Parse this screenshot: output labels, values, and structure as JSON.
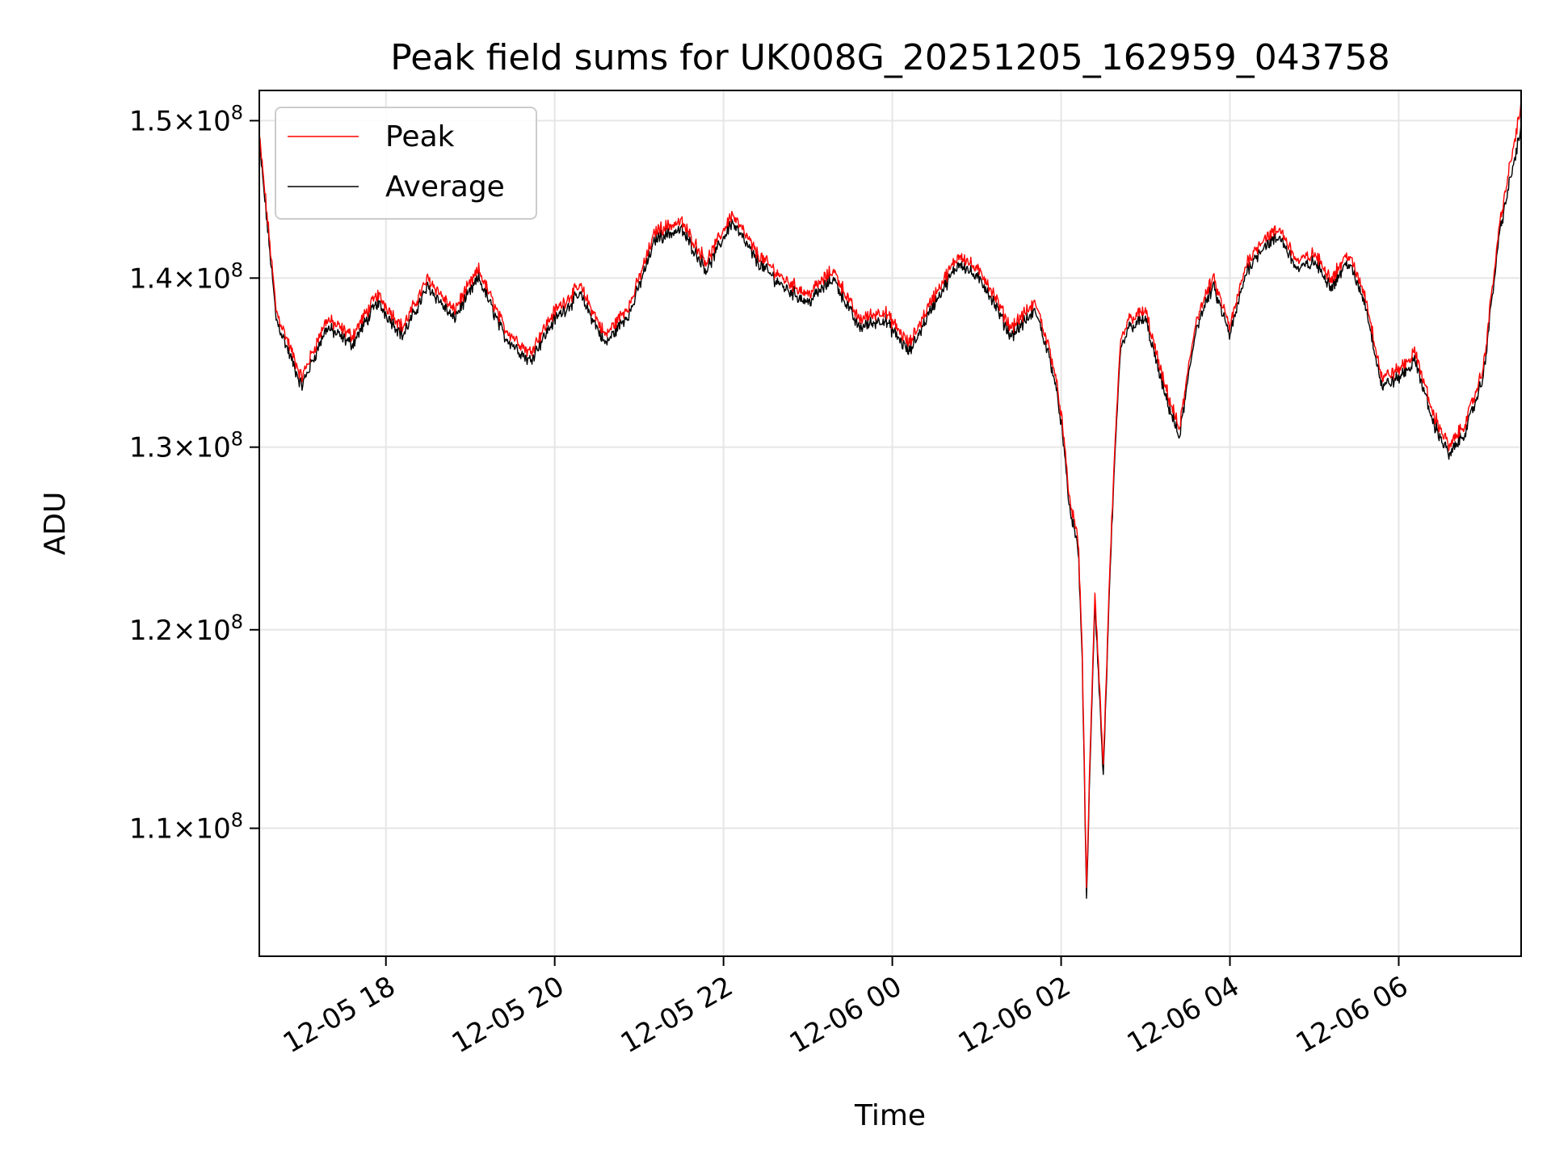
{
  "chart_data": {
    "type": "line",
    "title": "Peak field sums for UK008G_20251205_162959_043758",
    "xlabel": "Time",
    "ylabel": "ADU",
    "y_scale": "log",
    "ylim": [
      104000000,
      152000000
    ],
    "xlim_hours": [
      16.5,
      7.45
    ],
    "x_ticks": [
      {
        "label": "12-05 18",
        "hour": 18
      },
      {
        "label": "12-05 20",
        "hour": 20
      },
      {
        "label": "12-05 22",
        "hour": 22
      },
      {
        "label": "12-06 00",
        "hour": 24
      },
      {
        "label": "12-06 02",
        "hour": 26
      },
      {
        "label": "12-06 04",
        "hour": 28
      },
      {
        "label": "12-06 06",
        "hour": 30
      }
    ],
    "y_ticks": [
      {
        "mantissa": "1.1",
        "exp": "8",
        "value": 110000000
      },
      {
        "mantissa": "1.2",
        "exp": "8",
        "value": 120000000
      },
      {
        "mantissa": "1.3",
        "exp": "8",
        "value": 130000000
      },
      {
        "mantissa": "1.4",
        "exp": "8",
        "value": 140000000
      },
      {
        "mantissa": "1.5",
        "exp": "8",
        "value": 150000000
      }
    ],
    "grid": true,
    "legend_position": "upper-left",
    "series": [
      {
        "name": "Peak",
        "color": "#ff0000",
        "x_hours": [
          16.5,
          16.7,
          17.0,
          17.3,
          17.6,
          17.9,
          18.2,
          18.5,
          18.8,
          19.1,
          19.4,
          19.7,
          20.0,
          20.3,
          20.6,
          20.9,
          21.2,
          21.5,
          21.8,
          22.1,
          22.4,
          22.7,
          23.0,
          23.3,
          23.6,
          23.9,
          24.2,
          24.5,
          24.8,
          25.1,
          25.4,
          25.7,
          25.9,
          26.0,
          26.1,
          26.2,
          26.25,
          26.3,
          26.4,
          26.5,
          26.6,
          26.7,
          26.8,
          27.0,
          27.2,
          27.4,
          27.6,
          27.8,
          28.0,
          28.2,
          28.4,
          28.6,
          28.8,
          29.0,
          29.2,
          29.4,
          29.6,
          29.8,
          30.0,
          30.2,
          30.4,
          30.6,
          30.8,
          31.0,
          31.2,
          31.45
        ],
        "values": [
          149000000,
          138000000,
          134000000,
          137500000,
          136500000,
          139000000,
          137000000,
          140000000,
          138000000,
          140500000,
          137000000,
          135500000,
          138000000,
          139500000,
          136500000,
          138500000,
          143000000,
          143500000,
          141000000,
          144000000,
          141500000,
          140000000,
          139000000,
          140500000,
          137500000,
          138000000,
          136000000,
          139000000,
          141500000,
          140000000,
          137000000,
          138500000,
          135000000,
          132000000,
          127000000,
          125000000,
          119000000,
          107000000,
          122000000,
          113000000,
          126000000,
          136000000,
          137500000,
          138000000,
          134000000,
          131000000,
          137500000,
          140000000,
          137000000,
          141000000,
          142500000,
          143000000,
          141000000,
          141500000,
          140000000,
          141500000,
          139000000,
          134000000,
          134500000,
          135500000,
          132000000,
          130000000,
          131500000,
          134500000,
          143500000,
          151000000
        ]
      },
      {
        "name": "Average",
        "color": "#000000",
        "x_hours": [
          16.5,
          16.7,
          17.0,
          17.3,
          17.6,
          17.9,
          18.2,
          18.5,
          18.8,
          19.1,
          19.4,
          19.7,
          20.0,
          20.3,
          20.6,
          20.9,
          21.2,
          21.5,
          21.8,
          22.1,
          22.4,
          22.7,
          23.0,
          23.3,
          23.6,
          23.9,
          24.2,
          24.5,
          24.8,
          25.1,
          25.4,
          25.7,
          25.9,
          26.0,
          26.1,
          26.2,
          26.25,
          26.3,
          26.4,
          26.5,
          26.6,
          26.7,
          26.8,
          27.0,
          27.2,
          27.4,
          27.6,
          27.8,
          28.0,
          28.2,
          28.4,
          28.6,
          28.8,
          29.0,
          29.2,
          29.4,
          29.6,
          29.8,
          30.0,
          30.2,
          30.4,
          30.6,
          30.8,
          31.0,
          31.2,
          31.45
        ],
        "values": [
          148500000,
          137500000,
          133500000,
          137000000,
          136000000,
          138500000,
          136500000,
          139500000,
          137500000,
          140000000,
          136500000,
          135000000,
          137500000,
          139000000,
          136000000,
          138000000,
          142500000,
          143000000,
          140500000,
          143500000,
          141000000,
          139500000,
          138500000,
          140000000,
          137000000,
          137500000,
          135500000,
          138500000,
          141000000,
          139500000,
          136500000,
          138000000,
          134500000,
          131500000,
          126500000,
          124500000,
          118500000,
          106500000,
          121500000,
          112500000,
          125500000,
          135500000,
          137000000,
          137500000,
          133500000,
          130500000,
          137000000,
          139500000,
          136500000,
          140500000,
          142000000,
          142500000,
          140500000,
          141000000,
          139500000,
          141000000,
          138500000,
          133500000,
          134000000,
          135000000,
          131500000,
          129500000,
          131000000,
          134000000,
          143000000,
          149500000
        ]
      }
    ]
  }
}
